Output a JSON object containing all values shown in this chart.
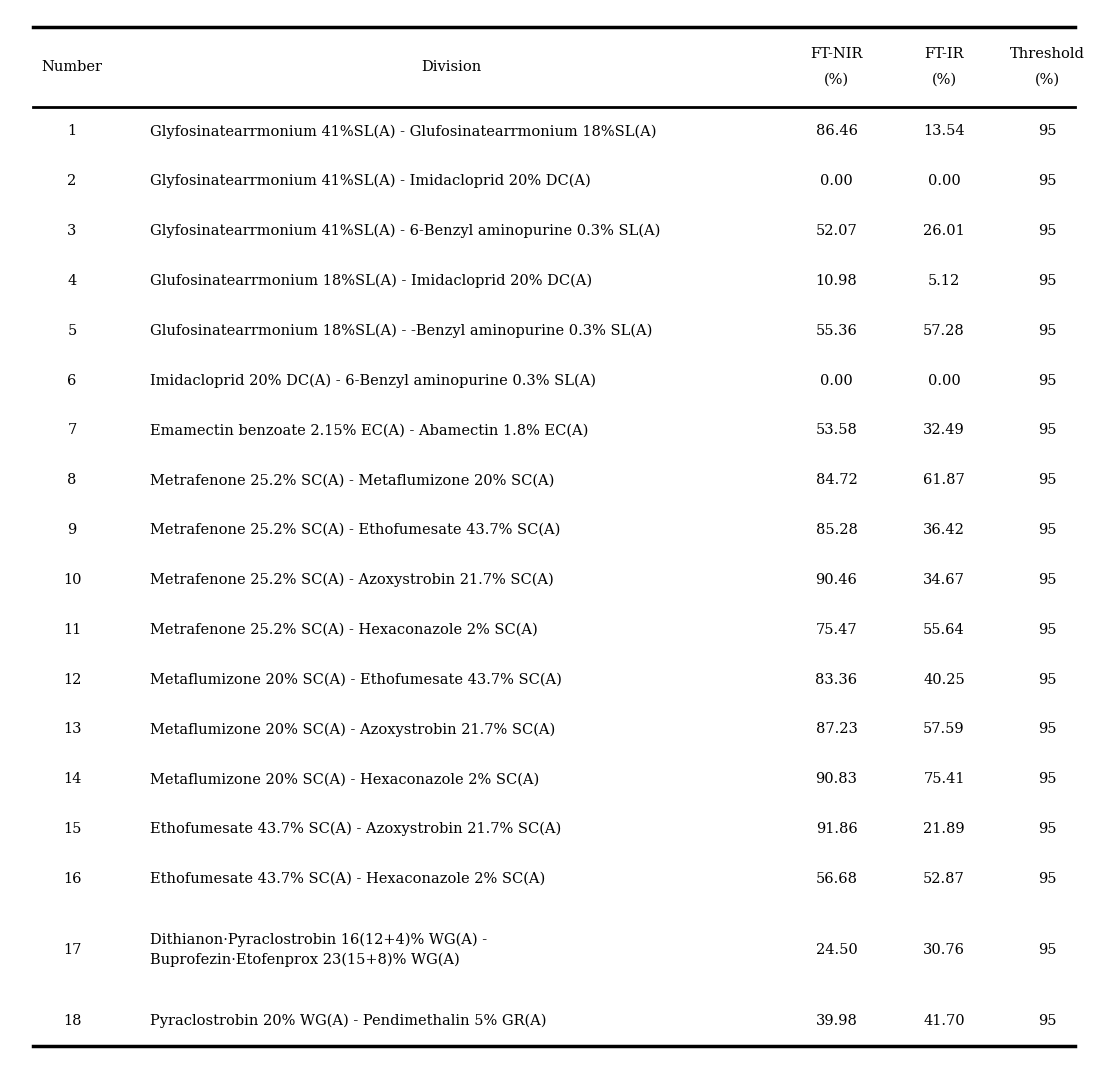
{
  "col_headers_line1": [
    "Number",
    "Division",
    "FT-NIR",
    "FT-IR",
    "Threshold"
  ],
  "col_headers_line2": [
    "",
    "",
    "(%)",
    "(%)",
    "(%)"
  ],
  "rows": [
    [
      1,
      "Glyfosinatearrmonium 41%SL(A) - Glufosinatearrmonium 18%SL(A)",
      86.46,
      13.54,
      95
    ],
    [
      2,
      "Glyfosinatearrmonium 41%SL(A) - Imidacloprid 20% DC(A)",
      0.0,
      0.0,
      95
    ],
    [
      3,
      "Glyfosinatearrmonium 41%SL(A) - 6-Benzyl aminopurine 0.3% SL(A)",
      52.07,
      26.01,
      95
    ],
    [
      4,
      "Glufosinatearrmonium 18%SL(A) - Imidacloprid 20% DC(A)",
      10.98,
      5.12,
      95
    ],
    [
      5,
      "Glufosinatearrmonium 18%SL(A) - -Benzyl aminopurine 0.3% SL(A)",
      55.36,
      57.28,
      95
    ],
    [
      6,
      "Imidacloprid 20% DC(A) - 6-Benzyl aminopurine 0.3% SL(A)",
      0.0,
      0.0,
      95
    ],
    [
      7,
      "Emamectin benzoate 2.15% EC(A) - Abamectin 1.8% EC(A)",
      53.58,
      32.49,
      95
    ],
    [
      8,
      "Metrafenone 25.2% SC(A) - Metaflumizone 20% SC(A)",
      84.72,
      61.87,
      95
    ],
    [
      9,
      "Metrafenone 25.2% SC(A) - Ethofumesate 43.7% SC(A)",
      85.28,
      36.42,
      95
    ],
    [
      10,
      "Metrafenone 25.2% SC(A) - Azoxystrobin 21.7% SC(A)",
      90.46,
      34.67,
      95
    ],
    [
      11,
      "Metrafenone 25.2% SC(A) - Hexaconazole 2% SC(A)",
      75.47,
      55.64,
      95
    ],
    [
      12,
      "Metaflumizone 20% SC(A) - Ethofumesate 43.7% SC(A)",
      83.36,
      40.25,
      95
    ],
    [
      13,
      "Metaflumizone 20% SC(A) - Azoxystrobin 21.7% SC(A)",
      87.23,
      57.59,
      95
    ],
    [
      14,
      "Metaflumizone 20% SC(A) - Hexaconazole 2% SC(A)",
      90.83,
      75.41,
      95
    ],
    [
      15,
      "Ethofumesate 43.7% SC(A) - Azoxystrobin 21.7% SC(A)",
      91.86,
      21.89,
      95
    ],
    [
      16,
      "Ethofumesate 43.7% SC(A) - Hexaconazole 2% SC(A)",
      56.68,
      52.87,
      95
    ],
    [
      17,
      "Dithianon·Pyraclostrobin 16(12+4)% WG(A) -\nBuprofezin·Etofenprox 23(15+8)% WG(A)",
      24.5,
      30.76,
      95
    ],
    [
      18,
      "Pyraclostrobin 20% WG(A) - Pendimethalin 5% GR(A)",
      39.98,
      41.7,
      95
    ]
  ],
  "text_color": "#000000",
  "font_size": 10.5,
  "header_font_size": 10.5,
  "fig_width": 11.08,
  "fig_height": 10.65,
  "dpi": 100
}
